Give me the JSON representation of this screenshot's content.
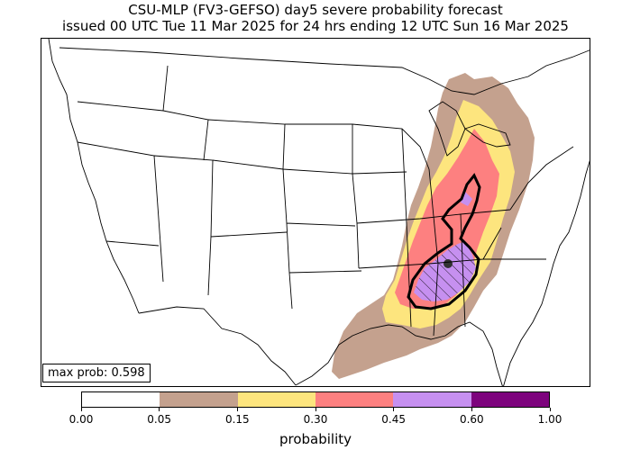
{
  "title": {
    "line1": "CSU-MLP (FV3-GEFSO) day5 severe probability forecast",
    "line2": "issued 00 UTC Tue 11 Mar 2025 for 24 hrs ending 12 UTC Sun 16 Mar 2025"
  },
  "max_prob_label": "max prob: 0.598",
  "colorbar": {
    "label": "probability",
    "ticks": [
      "0.00",
      "0.05",
      "0.15",
      "0.30",
      "0.45",
      "0.60",
      "1.00"
    ],
    "colors": [
      "#ffffff",
      "#c4a18e",
      "#fde57e",
      "#fd8080",
      "#c690f0",
      "#7d037d"
    ]
  },
  "map": {
    "contour_colors": {
      "p05": "#c4a18e",
      "p15": "#fde57e",
      "p30": "#fd8080",
      "p45": "#c690f0"
    },
    "outline_color": "#000000",
    "max_marker_color": "#333333"
  }
}
